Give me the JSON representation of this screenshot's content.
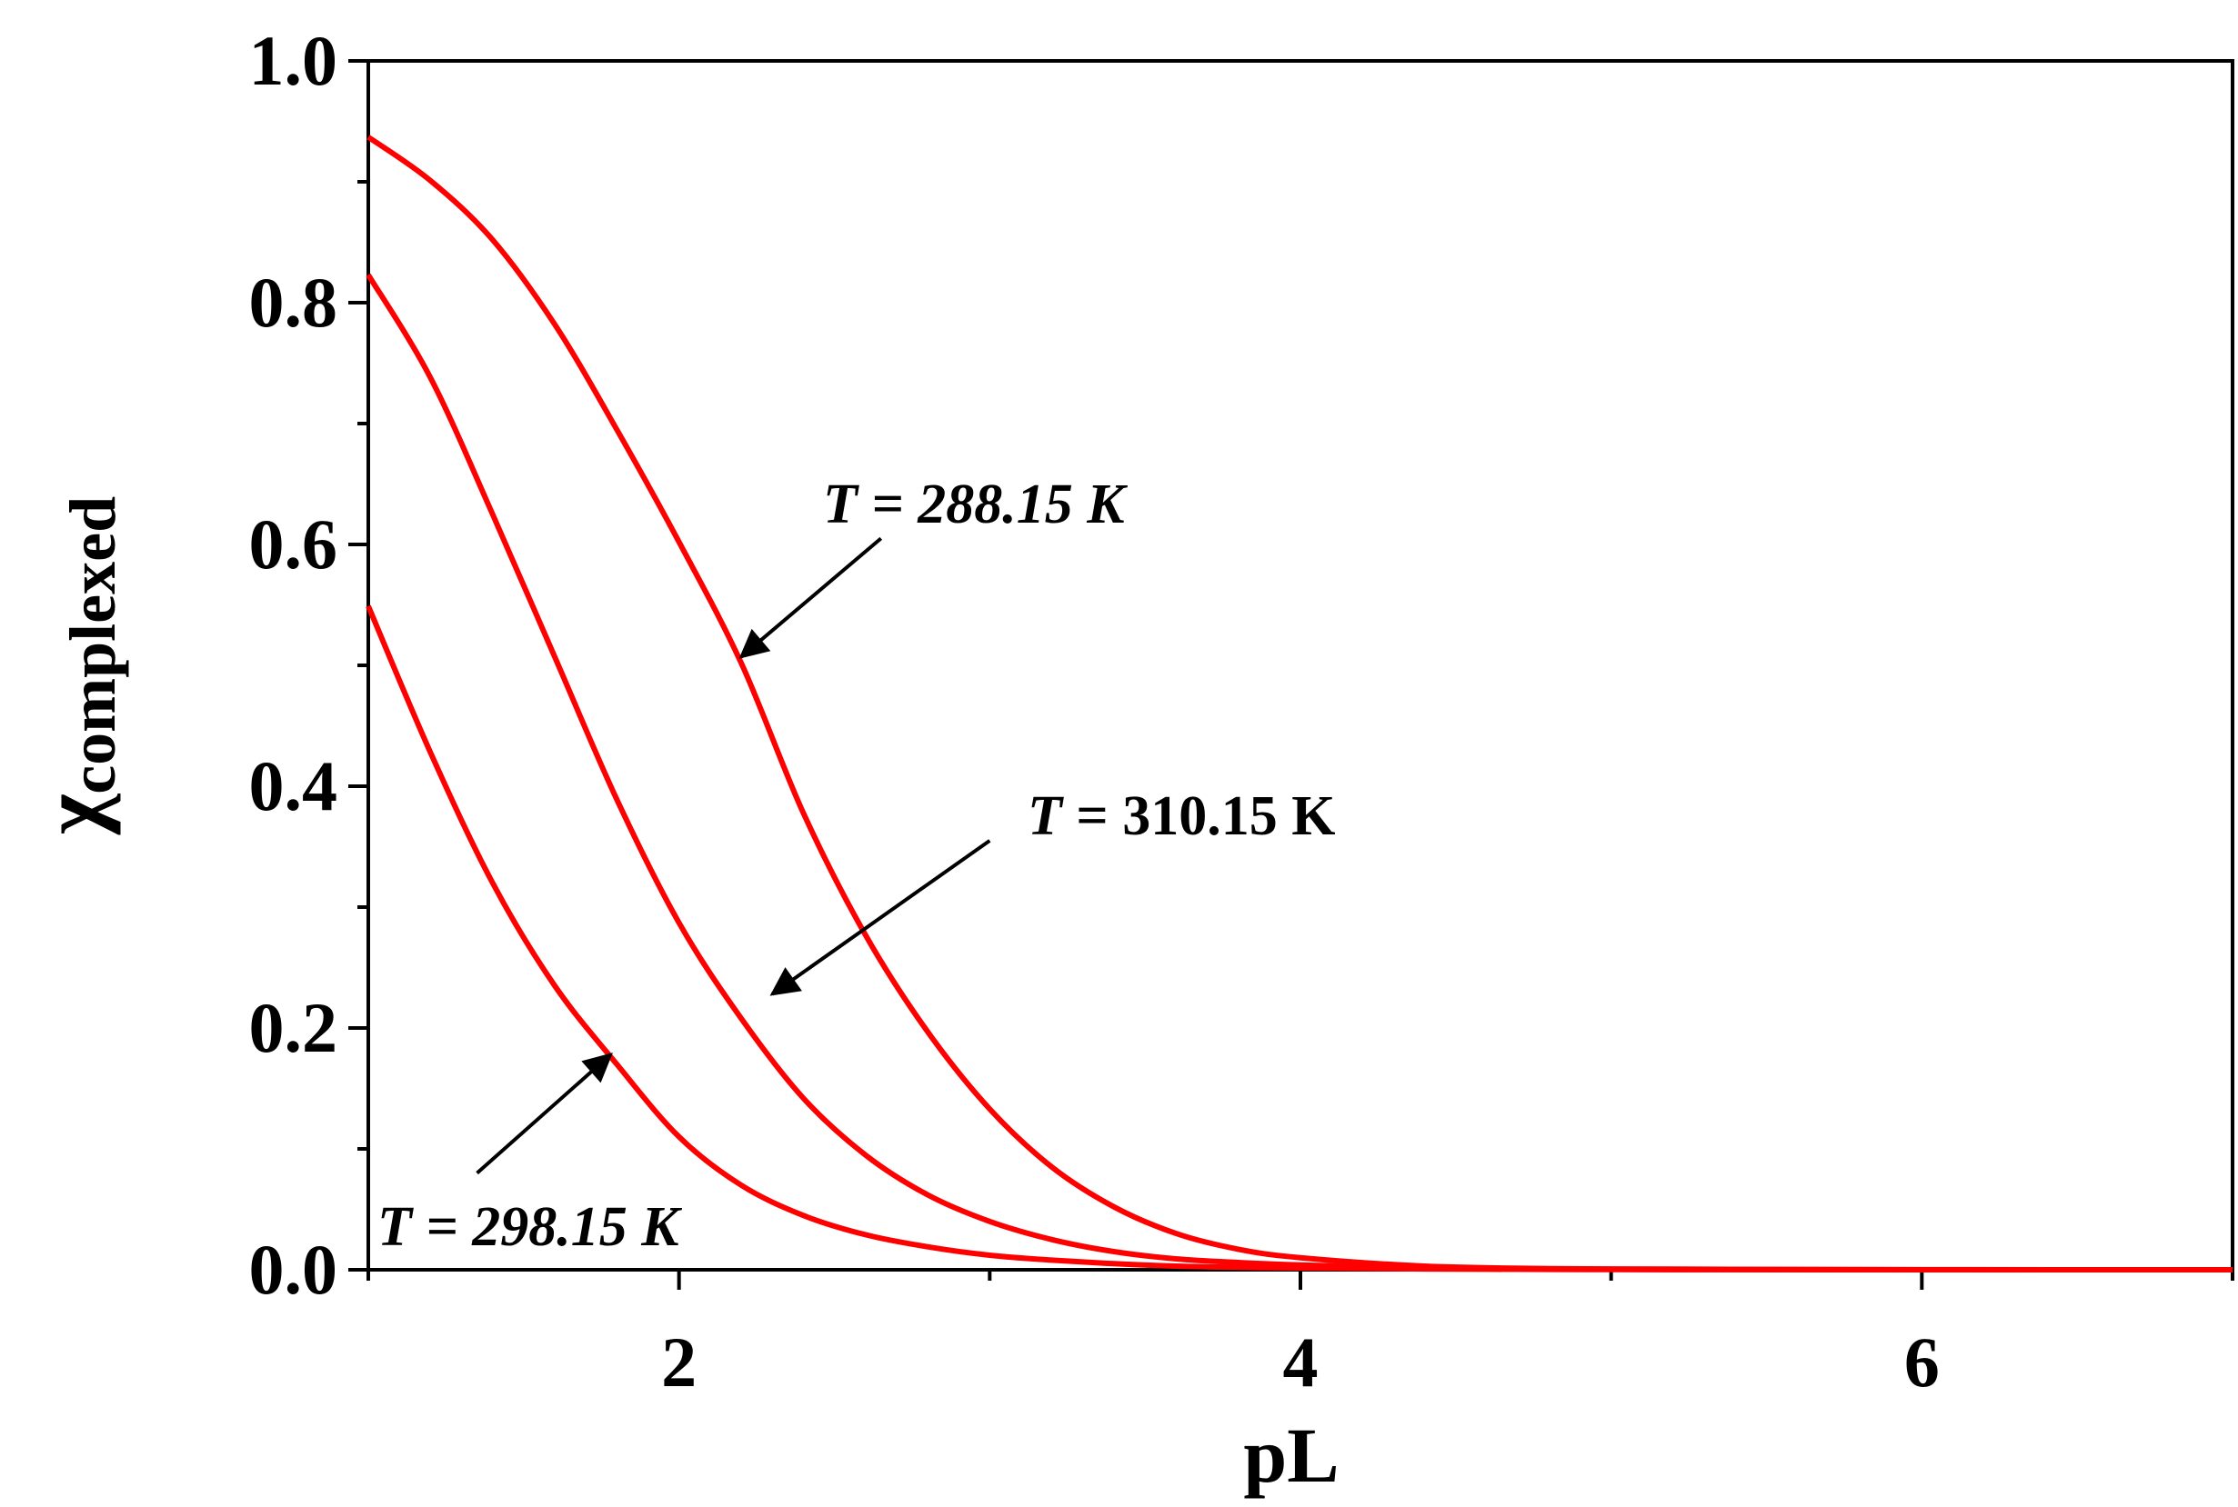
{
  "chart_data": {
    "type": "line",
    "title": "",
    "xlabel": "pL",
    "ylabel_main": "χ",
    "ylabel_sub": "complexed",
    "xlim": [
      1,
      7
    ],
    "ylim": [
      0,
      1.0
    ],
    "x_ticks": [
      2,
      4,
      6
    ],
    "x_tick_labels": [
      "2",
      "4",
      "6"
    ],
    "x_minor_ticks": [
      1,
      3,
      5,
      7
    ],
    "y_ticks": [
      0.0,
      0.2,
      0.4,
      0.6,
      0.8,
      1.0
    ],
    "y_tick_labels": [
      "0.0",
      "0.2",
      "0.4",
      "0.6",
      "0.8",
      "1.0"
    ],
    "y_minor_ticks": [
      0.1,
      0.3,
      0.5,
      0.7,
      0.9
    ],
    "grid": false,
    "legend": "none",
    "series_color": "#ff0000",
    "series": [
      {
        "x": [
          1.0,
          1.2,
          1.4,
          1.6,
          1.8,
          2.0,
          2.2,
          2.4,
          2.6,
          2.8,
          3.0,
          3.2,
          3.4,
          3.6,
          3.8,
          4.0,
          4.4,
          4.8,
          5.2,
          6.0,
          7.0
        ],
        "values": [
          0.937,
          0.901,
          0.852,
          0.782,
          0.695,
          0.602,
          0.502,
          0.378,
          0.277,
          0.197,
          0.133,
          0.085,
          0.052,
          0.03,
          0.017,
          0.01,
          0.003,
          0.001,
          0.0005,
          0.0001,
          0.0
        ]
      },
      {
        "x": [
          1.0,
          1.2,
          1.4,
          1.6,
          1.8,
          2.0,
          2.2,
          2.4,
          2.6,
          2.8,
          3.0,
          3.2,
          3.4,
          3.6,
          3.8,
          4.0,
          4.4,
          4.8,
          5.2,
          6.0,
          7.0
        ],
        "values": [
          0.823,
          0.738,
          0.625,
          0.507,
          0.389,
          0.287,
          0.208,
          0.142,
          0.095,
          0.062,
          0.04,
          0.025,
          0.015,
          0.009,
          0.006,
          0.004,
          0.0015,
          0.0006,
          0.0002,
          0.0,
          0.0
        ]
      },
      {
        "x": [
          1.0,
          1.2,
          1.4,
          1.6,
          1.8,
          2.0,
          2.2,
          2.4,
          2.6,
          2.8,
          3.0,
          3.2,
          3.4,
          3.6,
          3.8,
          4.0,
          4.4,
          4.8,
          5.2,
          6.0,
          7.0
        ],
        "values": [
          0.549,
          0.428,
          0.32,
          0.235,
          0.17,
          0.11,
          0.07,
          0.045,
          0.029,
          0.019,
          0.012,
          0.008,
          0.005,
          0.003,
          0.002,
          0.0015,
          0.0007,
          0.0003,
          0.0001,
          0.0,
          0.0
        ]
      }
    ],
    "annotations": [
      {
        "var": "T",
        "text": " = 288.15 K",
        "italic": true,
        "from": [
          2.65,
          0.605
        ],
        "to": [
          2.2,
          0.507
        ]
      },
      {
        "var": "T",
        "text": " = 310.15 K",
        "italic": false,
        "from": [
          3.0,
          0.355
        ],
        "to": [
          2.3,
          0.228
        ]
      },
      {
        "var": "T",
        "text": " = 298.15 K",
        "italic": true,
        "from": [
          1.35,
          0.08
        ],
        "to": [
          1.78,
          0.178
        ]
      }
    ]
  }
}
